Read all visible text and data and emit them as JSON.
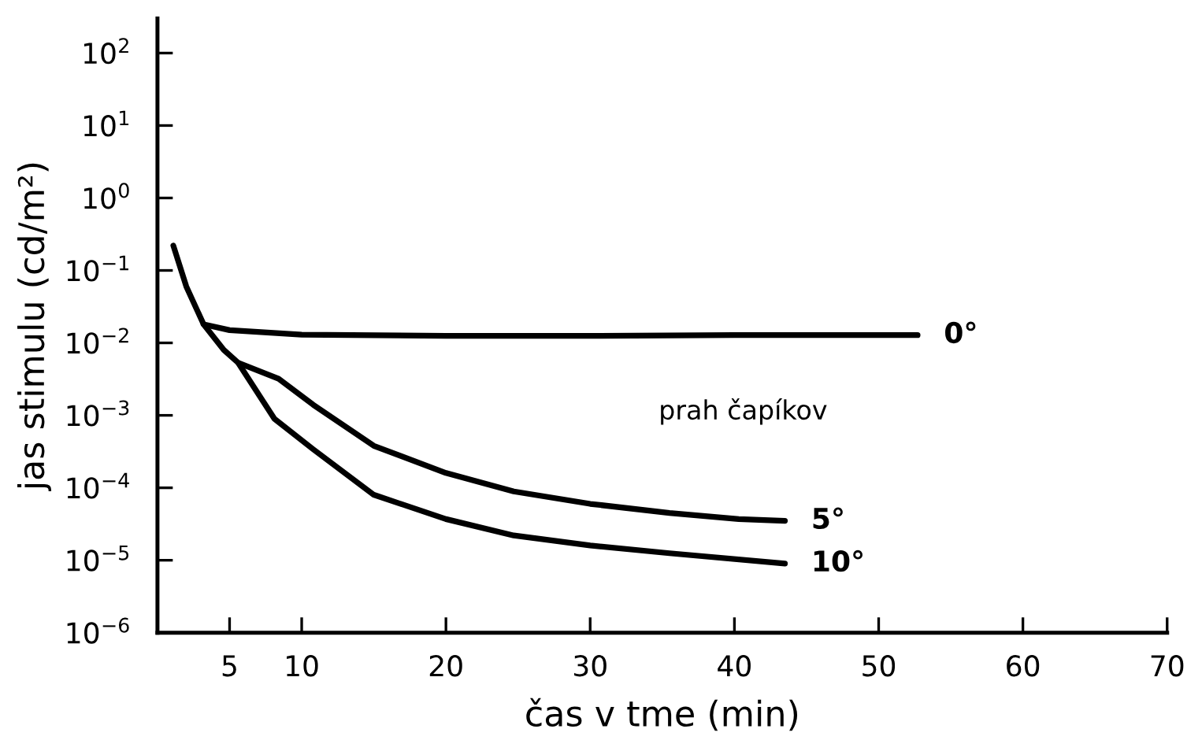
{
  "chart_data": {
    "type": "line",
    "xlabel": "čas v tme (min)",
    "ylabel": "jas stimulu (cd/m²)",
    "log": "y",
    "grid": false,
    "legend": false,
    "marker": "none",
    "line_style": "solid",
    "xlim": [
      0,
      70
    ],
    "xticks": [
      5,
      10,
      20,
      30,
      40,
      50,
      60,
      70
    ],
    "ylim": [
      1e-06,
      300
    ],
    "yticks": [
      {
        "value": 1e-06,
        "label": "10$^{−6}$"
      },
      {
        "value": 1e-05,
        "label": "10$^{−5}$"
      },
      {
        "value": 0.0001,
        "label": "10$^{−4}$"
      },
      {
        "value": 0.001,
        "label": "10$^{−3}$"
      },
      {
        "value": 0.01,
        "label": "10$^{−2}$"
      },
      {
        "value": 0.1,
        "label": "10$^{−1}$"
      },
      {
        "value": 1,
        "label": "10$^{0}$"
      },
      {
        "value": 10,
        "label": "10$^{1}$"
      },
      {
        "value": 100,
        "label": "10$^{2}$"
      }
    ],
    "series": [
      {
        "name": "0°",
        "color": "#000000",
        "x": [
          1.1,
          2.0,
          3.2,
          5,
          10,
          20,
          30,
          40,
          52.7
        ],
        "values": [
          0.22,
          0.06,
          0.018,
          0.015,
          0.013,
          0.0125,
          0.0125,
          0.0128,
          0.0128
        ]
      },
      {
        "name": "5°",
        "color": "#000000",
        "x": [
          3.2,
          4.6,
          5.6,
          8.4,
          10.8,
          15,
          20,
          24.7,
          30,
          35.5,
          40.3,
          43.5
        ],
        "values": [
          0.018,
          0.008,
          0.0053,
          0.0032,
          0.0014,
          0.00038,
          0.00016,
          8.9e-05,
          6e-05,
          4.5e-05,
          3.7e-05,
          3.5e-05
        ]
      },
      {
        "name": "10°",
        "color": "#000000",
        "x": [
          5.6,
          8.1,
          10.8,
          15,
          20,
          24.7,
          30,
          35.5,
          43.5
        ],
        "values": [
          0.0053,
          0.0009,
          0.00034,
          8e-05,
          3.7e-05,
          2.2e-05,
          1.6e-05,
          1.25e-05,
          9e-06
        ]
      }
    ],
    "annotations": [
      "prah čapíkov"
    ]
  }
}
